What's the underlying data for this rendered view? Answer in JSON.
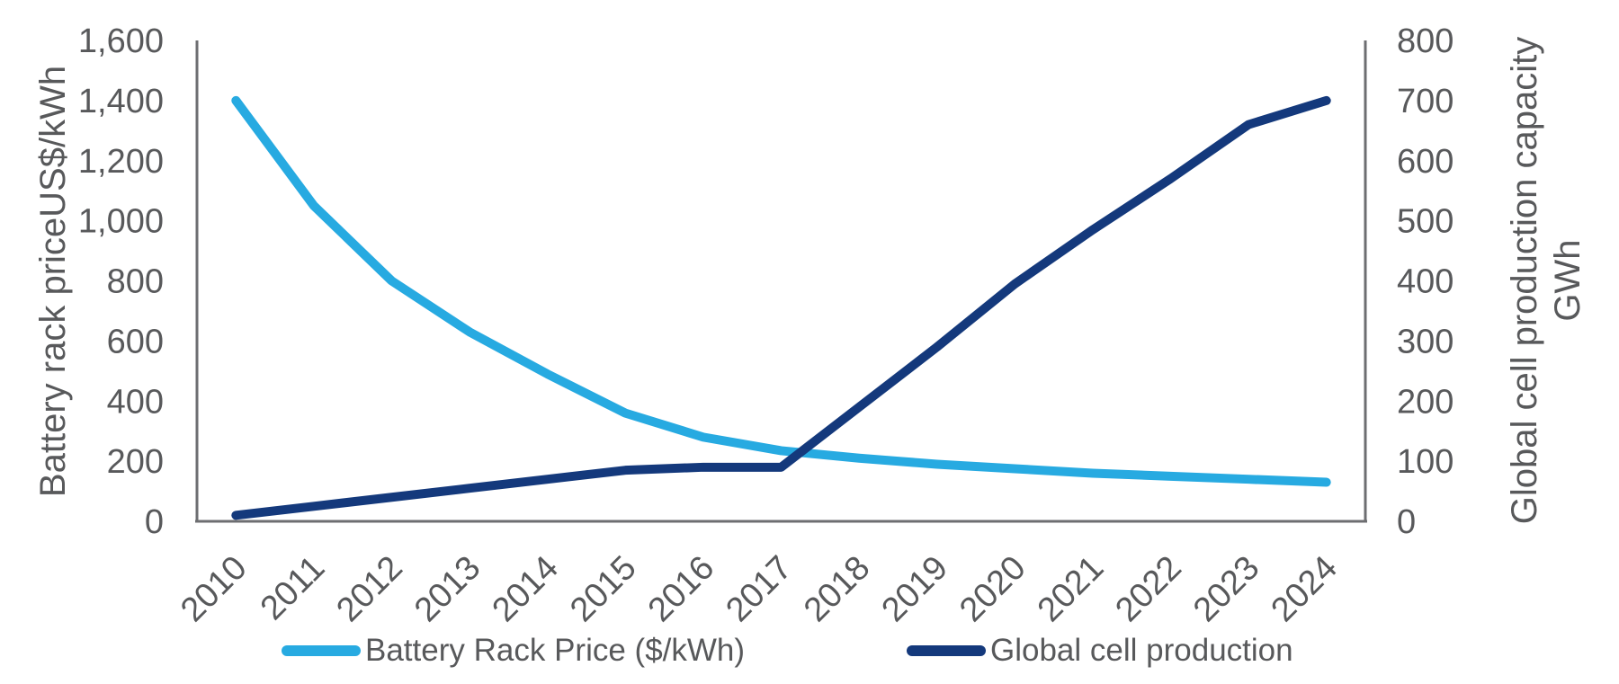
{
  "chart_data": {
    "type": "line",
    "title": "",
    "grid": false,
    "legend_position": "bottom",
    "categories": [
      "2010",
      "2011",
      "2012",
      "2013",
      "2014",
      "2015",
      "2016",
      "2017",
      "2018",
      "2019",
      "2020",
      "2021",
      "2022",
      "2023",
      "2024"
    ],
    "series": [
      {
        "name": "Battery Rack Price ($/kWh)",
        "axis": "left",
        "color": "#27AAE1",
        "values": [
          1400,
          1050,
          800,
          630,
          490,
          360,
          280,
          235,
          210,
          190,
          175,
          160,
          150,
          140,
          130
        ]
      },
      {
        "name": "Global cell production",
        "axis": "right",
        "color": "#14397C",
        "values": [
          10,
          25,
          40,
          55,
          70,
          85,
          90,
          90,
          190,
          290,
          395,
          485,
          570,
          660,
          700
        ]
      }
    ],
    "left_axis": {
      "title": "Battery rack priceUS$/kWh",
      "min": 0,
      "max": 1600,
      "ticks": [
        "1,600",
        "1,400",
        "1,200",
        "1,000",
        "800",
        "600",
        "400",
        "200",
        "0"
      ]
    },
    "right_axis": {
      "title_line1": "Global cell production capacity",
      "title_line2": "GWh",
      "min": 0,
      "max": 800,
      "ticks": [
        "800",
        "700",
        "600",
        "500",
        "400",
        "300",
        "200",
        "100",
        "0"
      ]
    }
  },
  "colors": {
    "text": "#58595B",
    "axis_line": "#6D6E71",
    "background": "#FFFFFF"
  }
}
